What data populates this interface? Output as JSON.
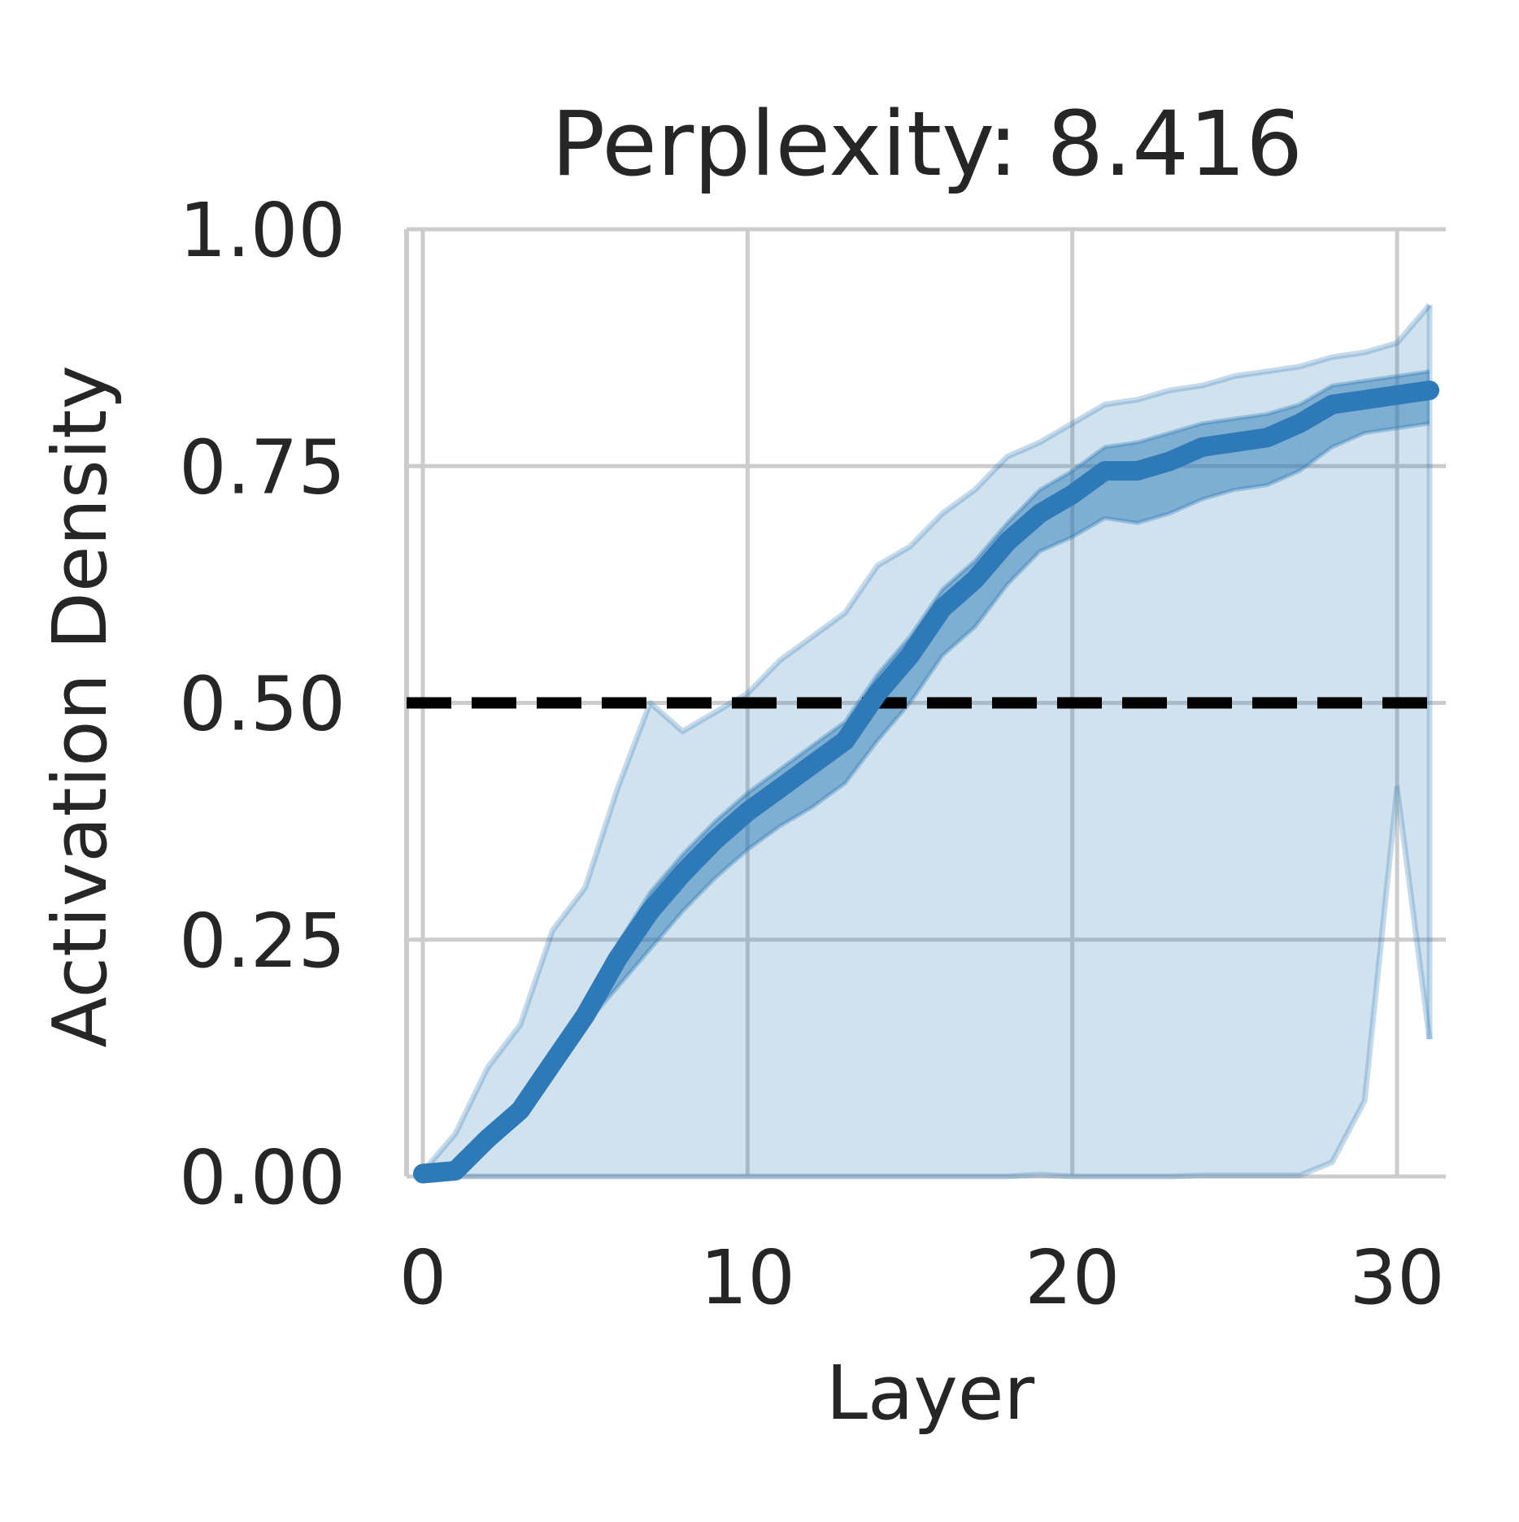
{
  "chart_data": {
    "type": "line",
    "title": "Perplexity: 8.416",
    "xlabel": "Layer",
    "ylabel": "Activation Density",
    "xlim": [
      -0.5,
      31.5
    ],
    "ylim": [
      0,
      1
    ],
    "xticks": [
      0,
      10,
      20,
      30
    ],
    "xtick_labels": [
      "0",
      "10",
      "20",
      "30"
    ],
    "yticks": [
      0,
      0.25,
      0.5,
      0.75,
      1.0
    ],
    "ytick_labels": [
      "0.00",
      "0.25",
      "0.50",
      "0.75",
      "1.00"
    ],
    "grid": true,
    "reference_line": {
      "y": 0.5,
      "style": "dashed",
      "color": "#000000"
    },
    "colors": {
      "series": "#2e7ab8",
      "band": "#2e7ab8",
      "grid": "#cccccc",
      "text": "#262626"
    },
    "x": [
      0,
      1,
      2,
      3,
      4,
      5,
      6,
      7,
      8,
      9,
      10,
      11,
      12,
      13,
      14,
      15,
      16,
      17,
      18,
      19,
      20,
      21,
      22,
      23,
      24,
      25,
      26,
      27,
      28,
      29,
      30,
      31
    ],
    "series": [
      {
        "values": [
          0.003,
          0.006,
          0.04,
          0.07,
          0.12,
          0.17,
          0.23,
          0.28,
          0.32,
          0.355,
          0.385,
          0.41,
          0.435,
          0.46,
          0.51,
          0.55,
          0.6,
          0.63,
          0.67,
          0.7,
          0.72,
          0.745,
          0.745,
          0.755,
          0.77,
          0.775,
          0.78,
          0.795,
          0.815,
          0.82,
          0.825,
          0.83
        ],
        "inner_band_lower": [
          0.0,
          0.0,
          0.035,
          0.06,
          0.11,
          0.16,
          0.2,
          0.24,
          0.28,
          0.315,
          0.345,
          0.37,
          0.39,
          0.415,
          0.46,
          0.5,
          0.55,
          0.58,
          0.625,
          0.66,
          0.675,
          0.695,
          0.69,
          0.7,
          0.715,
          0.725,
          0.73,
          0.745,
          0.77,
          0.785,
          0.79,
          0.795
        ],
        "inner_band_upper": [
          0.005,
          0.008,
          0.045,
          0.08,
          0.13,
          0.18,
          0.245,
          0.3,
          0.34,
          0.375,
          0.405,
          0.43,
          0.455,
          0.48,
          0.53,
          0.57,
          0.62,
          0.65,
          0.69,
          0.725,
          0.745,
          0.77,
          0.775,
          0.785,
          0.795,
          0.8,
          0.805,
          0.815,
          0.835,
          0.84,
          0.845,
          0.85
        ],
        "outer_band_lower": [
          0.0,
          0.0,
          0.0,
          0.0,
          0.0,
          0.0,
          0.0,
          0.0,
          0.0,
          0.0,
          0.0,
          0.0,
          0.0,
          0.0,
          0.0,
          0.0,
          0.0,
          0.0,
          0.0,
          0.002,
          0.0,
          0.0,
          0.0,
          0.0,
          0.001,
          0.001,
          0.001,
          0.001,
          0.015,
          0.08,
          0.41,
          0.145
        ],
        "outer_band_upper": [
          0.005,
          0.045,
          0.115,
          0.16,
          0.26,
          0.305,
          0.41,
          0.5,
          0.47,
          0.49,
          0.51,
          0.545,
          0.57,
          0.595,
          0.645,
          0.665,
          0.7,
          0.725,
          0.76,
          0.775,
          0.795,
          0.815,
          0.82,
          0.83,
          0.835,
          0.845,
          0.85,
          0.855,
          0.865,
          0.87,
          0.88,
          0.92
        ]
      }
    ]
  }
}
